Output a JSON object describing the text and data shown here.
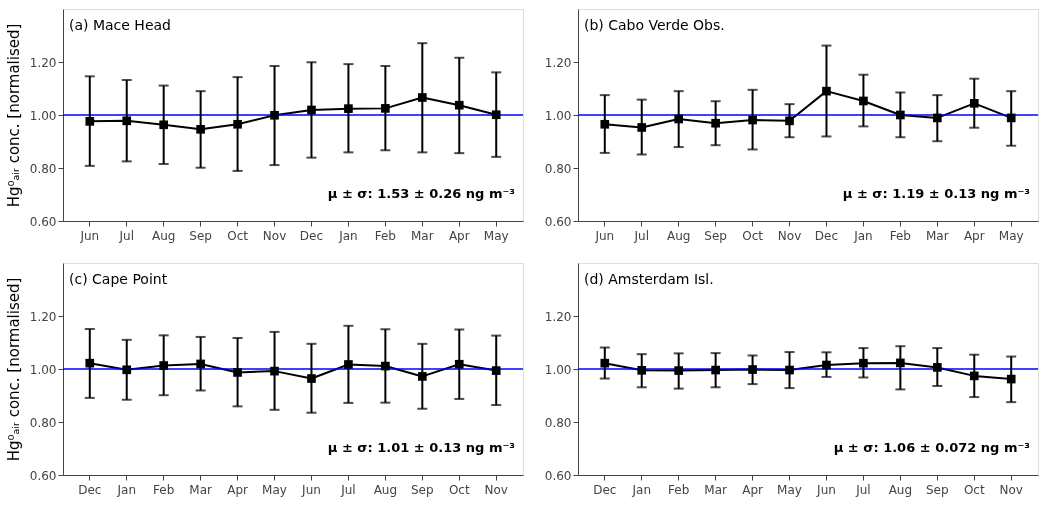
{
  "chart_data": [
    {
      "type": "line",
      "title": "(a) Mace Head",
      "ylabel": "Hg⁰ₐᵢᵣ conc. [normalised]",
      "categories": [
        "Jun",
        "Jul",
        "Aug",
        "Sep",
        "Oct",
        "Nov",
        "Dec",
        "Jan",
        "Feb",
        "Mar",
        "Apr",
        "May"
      ],
      "series": [
        {
          "color": "#000000",
          "values": [
            0.976,
            0.978,
            0.963,
            0.946,
            0.965,
            0.999,
            1.019,
            1.024,
            1.025,
            1.066,
            1.037,
            1.001
          ],
          "errors": [
            [
              0.808,
              1.146
            ],
            [
              0.825,
              1.132
            ],
            [
              0.815,
              1.111
            ],
            [
              0.801,
              1.09
            ],
            [
              0.789,
              1.143
            ],
            [
              0.811,
              1.185
            ],
            [
              0.839,
              1.199
            ],
            [
              0.859,
              1.192
            ],
            [
              0.867,
              1.185
            ],
            [
              0.859,
              1.271
            ],
            [
              0.856,
              1.216
            ],
            [
              0.842,
              1.161
            ]
          ]
        }
      ],
      "ylim": [
        0.6,
        1.4
      ],
      "yticks": [
        {
          "value": 0.6,
          "label": "0.60"
        },
        {
          "value": 0.8,
          "label": "0.80"
        },
        {
          "value": 1.0,
          "label": "1.00"
        },
        {
          "value": 1.2,
          "label": "1.20"
        }
      ],
      "ref_lines": [
        {
          "axis": "y",
          "value": 1.0,
          "color": "#0000ff"
        }
      ],
      "annotations": [
        "μ ± σ: 1.53 ± 0.26 ng m⁻³"
      ],
      "marker": "square",
      "line_style": "solid",
      "grid": false
    },
    {
      "type": "line",
      "title": "(b) Cabo Verde Obs.",
      "categories": [
        "Jun",
        "Jul",
        "Aug",
        "Sep",
        "Oct",
        "Nov",
        "Dec",
        "Jan",
        "Feb",
        "Mar",
        "Apr",
        "May"
      ],
      "series": [
        {
          "color": "#000000",
          "values": [
            0.965,
            0.953,
            0.985,
            0.969,
            0.981,
            0.978,
            1.09,
            1.053,
            1.0,
            0.989,
            1.044,
            0.989
          ],
          "errors": [
            [
              0.857,
              1.075
            ],
            [
              0.851,
              1.058
            ],
            [
              0.879,
              1.09
            ],
            [
              0.886,
              1.052
            ],
            [
              0.87,
              1.095
            ],
            [
              0.916,
              1.041
            ],
            [
              0.919,
              1.262
            ],
            [
              0.957,
              1.152
            ],
            [
              0.916,
              1.085
            ],
            [
              0.901,
              1.075
            ],
            [
              0.952,
              1.137
            ],
            [
              0.884,
              1.09
            ]
          ]
        }
      ],
      "ylim": [
        0.6,
        1.4
      ],
      "yticks": [
        {
          "value": 0.6,
          "label": "0.60"
        },
        {
          "value": 0.8,
          "label": "0.80"
        },
        {
          "value": 1.0,
          "label": "1.00"
        },
        {
          "value": 1.2,
          "label": "1.20"
        }
      ],
      "ref_lines": [
        {
          "axis": "y",
          "value": 1.0,
          "color": "#0000ff"
        }
      ],
      "annotations": [
        "μ ± σ: 1.19 ± 0.13 ng m⁻³"
      ],
      "marker": "square",
      "line_style": "solid",
      "grid": false
    },
    {
      "type": "line",
      "title": "(c) Cape Point",
      "ylabel": "Hg⁰ₐᵢᵣ conc. [normalised]",
      "categories": [
        "Dec",
        "Jan",
        "Feb",
        "Mar",
        "Apr",
        "May",
        "Jun",
        "Jul",
        "Aug",
        "Sep",
        "Oct",
        "Nov"
      ],
      "series": [
        {
          "color": "#000000",
          "values": [
            1.022,
            0.997,
            1.013,
            1.019,
            0.987,
            0.992,
            0.964,
            1.017,
            1.011,
            0.972,
            1.018,
            0.994
          ],
          "errors": [
            [
              0.891,
              1.151
            ],
            [
              0.884,
              1.11
            ],
            [
              0.901,
              1.127
            ],
            [
              0.919,
              1.121
            ],
            [
              0.859,
              1.117
            ],
            [
              0.846,
              1.14
            ],
            [
              0.835,
              1.095
            ],
            [
              0.872,
              1.163
            ],
            [
              0.873,
              1.15
            ],
            [
              0.85,
              1.095
            ],
            [
              0.887,
              1.149
            ],
            [
              0.864,
              1.126
            ]
          ]
        }
      ],
      "ylim": [
        0.6,
        1.4
      ],
      "yticks": [
        {
          "value": 0.6,
          "label": "0.60"
        },
        {
          "value": 0.8,
          "label": "0.80"
        },
        {
          "value": 1.0,
          "label": "1.00"
        },
        {
          "value": 1.2,
          "label": "1.20"
        }
      ],
      "ref_lines": [
        {
          "axis": "y",
          "value": 1.0,
          "color": "#0000ff"
        }
      ],
      "annotations": [
        "μ ± σ: 1.01 ± 0.13 ng m⁻³"
      ],
      "marker": "square",
      "line_style": "solid",
      "grid": false
    },
    {
      "type": "line",
      "title": "(d) Amsterdam Isl.",
      "categories": [
        "Dec",
        "Jan",
        "Feb",
        "Mar",
        "Apr",
        "May",
        "Jun",
        "Jul",
        "Aug",
        "Sep",
        "Oct",
        "Nov"
      ],
      "series": [
        {
          "color": "#000000",
          "values": [
            1.022,
            0.995,
            0.994,
            0.996,
            0.998,
            0.996,
            1.015,
            1.022,
            1.023,
            1.006,
            0.974,
            0.962
          ],
          "errors": [
            [
              0.964,
              1.081
            ],
            [
              0.931,
              1.056
            ],
            [
              0.926,
              1.059
            ],
            [
              0.931,
              1.06
            ],
            [
              0.943,
              1.051
            ],
            [
              0.928,
              1.064
            ],
            [
              0.97,
              1.063
            ],
            [
              0.968,
              1.079
            ],
            [
              0.923,
              1.086
            ],
            [
              0.936,
              1.079
            ],
            [
              0.894,
              1.054
            ],
            [
              0.875,
              1.047
            ]
          ]
        }
      ],
      "ylim": [
        0.6,
        1.4
      ],
      "yticks": [
        {
          "value": 0.6,
          "label": "0.60"
        },
        {
          "value": 0.8,
          "label": "0.80"
        },
        {
          "value": 1.0,
          "label": "1.00"
        },
        {
          "value": 1.2,
          "label": "1.20"
        }
      ],
      "ref_lines": [
        {
          "axis": "y",
          "value": 1.0,
          "color": "#0000ff"
        }
      ],
      "annotations": [
        "μ ± σ: 1.06 ± 0.072 ng m⁻³"
      ],
      "marker": "square",
      "line_style": "solid",
      "grid": false
    }
  ]
}
